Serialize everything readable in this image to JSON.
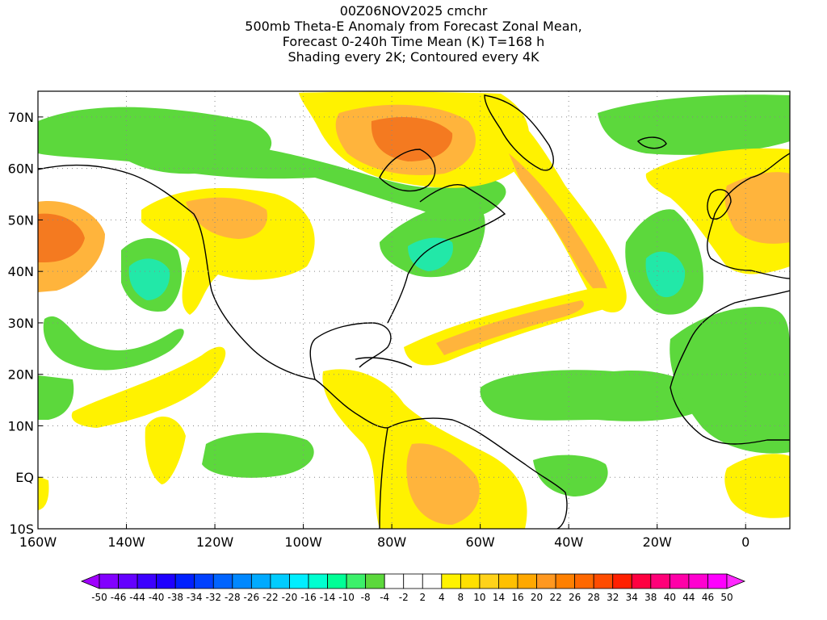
{
  "title": {
    "line1": "00Z06NOV2025 cmchr",
    "line2": "500mb Theta-E Anomaly from Forecast Zonal Mean,",
    "line3": "Forecast 0-240h Time Mean (K) T=168 h",
    "line4": "Shading every 2K; Contoured every 4K"
  },
  "map": {
    "lon_range": [
      -160,
      10
    ],
    "lat_range": [
      -10,
      75
    ],
    "lon_ticks": [
      {
        "lon": -160,
        "label": "160W"
      },
      {
        "lon": -140,
        "label": "140W"
      },
      {
        "lon": -120,
        "label": "120W"
      },
      {
        "lon": -100,
        "label": "100W"
      },
      {
        "lon": -80,
        "label": "80W"
      },
      {
        "lon": -60,
        "label": "60W"
      },
      {
        "lon": -40,
        "label": "40W"
      },
      {
        "lon": -20,
        "label": "20W"
      },
      {
        "lon": 0,
        "label": "0"
      }
    ],
    "lat_ticks": [
      {
        "lat": -10,
        "label": "10S"
      },
      {
        "lat": 0,
        "label": "EQ"
      },
      {
        "lat": 10,
        "label": "10N"
      },
      {
        "lat": 20,
        "label": "20N"
      },
      {
        "lat": 30,
        "label": "30N"
      },
      {
        "lat": 40,
        "label": "40N"
      },
      {
        "lat": 50,
        "label": "50N"
      },
      {
        "lat": 60,
        "label": "60N"
      },
      {
        "lat": 70,
        "label": "70N"
      }
    ],
    "grid": "dotted",
    "colors": {
      "green": "#5cd83c",
      "light_green": "#3cf06a",
      "teal": "#22e8a8",
      "yellow": "#fff200",
      "yellow_dark": "#ffd21a",
      "orange_light": "#ffb43c",
      "orange": "#ff9820",
      "orange_dark": "#f47a20"
    }
  },
  "colorbar": {
    "labels": [
      "-50",
      "-46",
      "-44",
      "-40",
      "-38",
      "-34",
      "-32",
      "-28",
      "-26",
      "-22",
      "-20",
      "-16",
      "-14",
      "-10",
      "-8",
      "-4",
      "-2",
      "2",
      "4",
      "8",
      "10",
      "14",
      "16",
      "20",
      "22",
      "26",
      "28",
      "32",
      "34",
      "38",
      "40",
      "44",
      "46",
      "50"
    ],
    "colors": [
      "#a000ff",
      "#8200ff",
      "#6400ff",
      "#3c00ff",
      "#1e00ff",
      "#0020ff",
      "#0040ff",
      "#0064ff",
      "#0088ff",
      "#00aaff",
      "#00ccff",
      "#00eeff",
      "#00ffd0",
      "#00ff96",
      "#3cf06a",
      "#5cd83c",
      "#ffffff",
      "#ffffff",
      "#ffffff",
      "#fff200",
      "#ffe000",
      "#ffd21a",
      "#ffc000",
      "#ffa800",
      "#ff9820",
      "#ff8000",
      "#ff6800",
      "#ff4c00",
      "#ff2000",
      "#ff0040",
      "#ff0078",
      "#ff00a8",
      "#ff00d0",
      "#ff00ff",
      "#ff28ff"
    ]
  }
}
